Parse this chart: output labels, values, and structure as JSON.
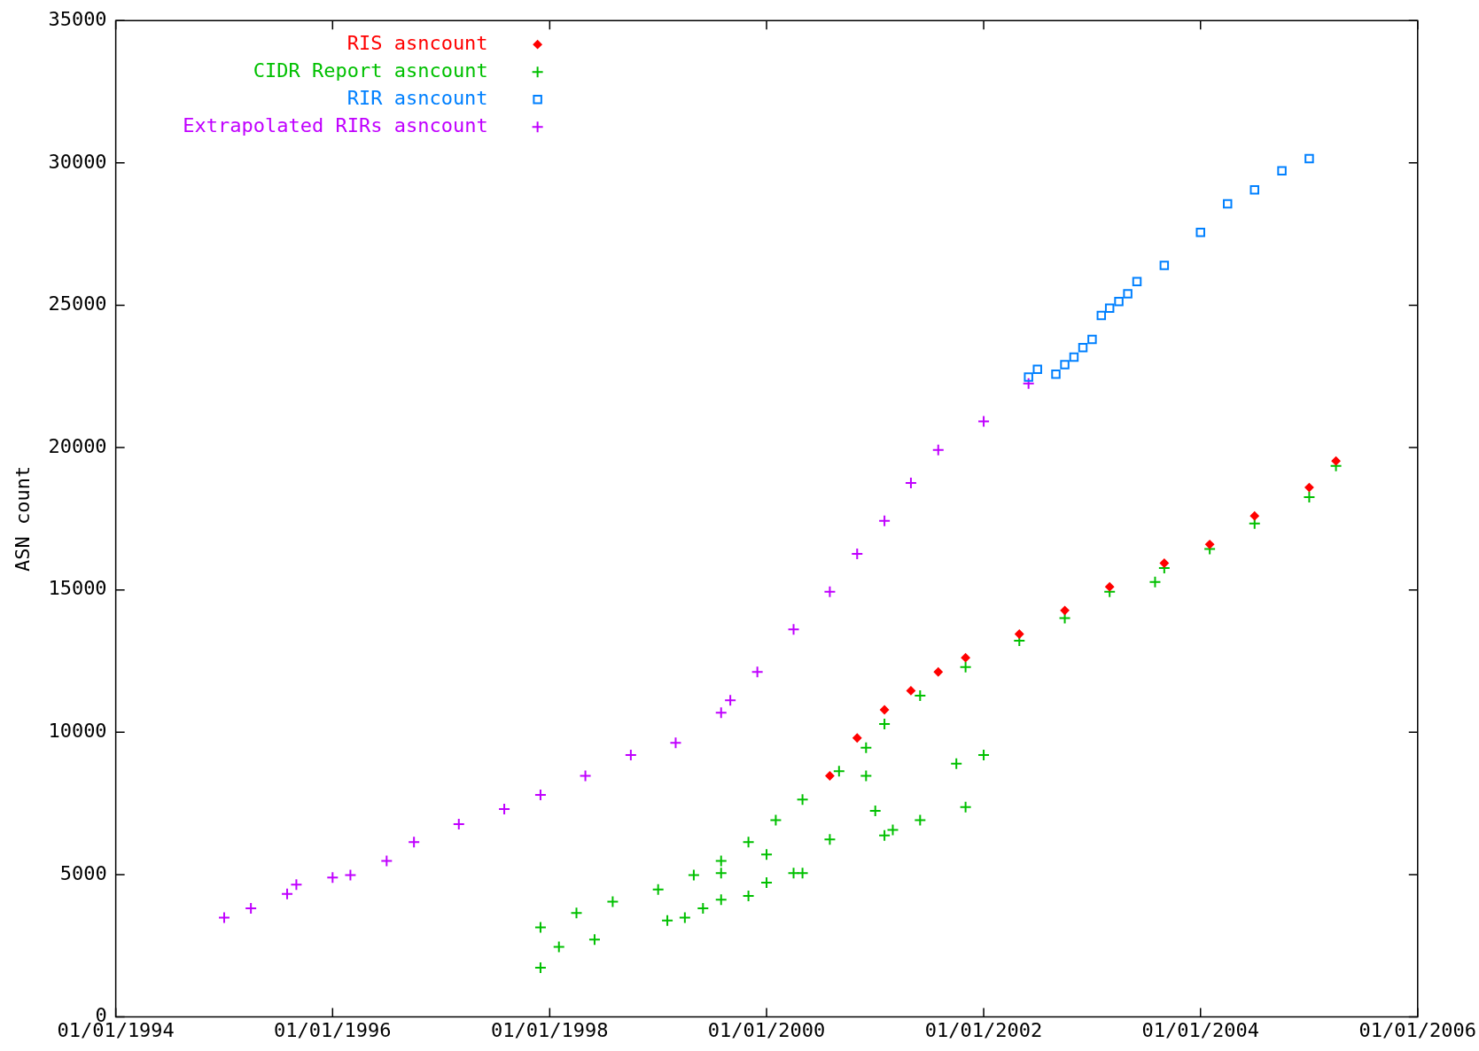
{
  "chart_data": {
    "type": "scatter",
    "ylabel": "ASN count",
    "legend": "top left",
    "xlim": [
      "1994-01-01",
      "2006-01-01"
    ],
    "xticks": [
      {
        "value": "1994-01-01",
        "label": "01/01/1994"
      },
      {
        "value": "1996-01-01",
        "label": "01/01/1996"
      },
      {
        "value": "1998-01-01",
        "label": "01/01/1998"
      },
      {
        "value": "2000-01-01",
        "label": "01/01/2000"
      },
      {
        "value": "2002-01-01",
        "label": "01/01/2002"
      },
      {
        "value": "2004-01-01",
        "label": "01/01/2004"
      },
      {
        "value": "2006-01-01",
        "label": "01/01/2006"
      }
    ],
    "ylim": [
      0,
      35000
    ],
    "yticks": [
      0,
      5000,
      10000,
      15000,
      20000,
      25000,
      30000,
      35000
    ],
    "series": [
      {
        "name": "RIS asncount",
        "color": "#ff0000",
        "marker": "diamond",
        "x": [
          "2000-08",
          "2000-11",
          "2001-02",
          "2001-05",
          "2001-08",
          "2001-11",
          "2002-05",
          "2002-10",
          "2003-03",
          "2003-09",
          "2004-02",
          "2004-07",
          "2005-01",
          "2005-04"
        ],
        "values": [
          8470,
          9800,
          10790,
          11460,
          12120,
          12620,
          13450,
          14280,
          15110,
          15940,
          16600,
          17600,
          18600,
          19530
        ]
      },
      {
        "name": "CIDR Report asncount",
        "color": "#00c000",
        "marker": "cross",
        "x": [
          "1997-12",
          "1998-04",
          "1998-08",
          "1999-01",
          "1999-05",
          "1999-08",
          "1999-11",
          "2000-02",
          "2000-05",
          "2000-09",
          "2000-12",
          "2001-02",
          "2001-06",
          "2001-11",
          "2002-05",
          "2002-10",
          "2003-03",
          "2003-09",
          "2004-02",
          "2004-07",
          "2005-01",
          "2005-04",
          "1997-12",
          "1998-02",
          "1998-06",
          "1999-02",
          "1999-04",
          "1999-06",
          "1999-08",
          "1999-08",
          "1999-11",
          "2000-01",
          "2000-01",
          "2000-04",
          "2000-05",
          "2000-08",
          "2000-12",
          "2001-01",
          "2001-02",
          "2001-03",
          "2001-06",
          "2001-10",
          "2001-11",
          "2002-01",
          "2003-08"
        ],
        "values": [
          3150,
          3650,
          4050,
          4480,
          4980,
          5480,
          6140,
          6910,
          7640,
          8630,
          9460,
          10290,
          11290,
          12290,
          13220,
          14010,
          14940,
          15770,
          16440,
          17330,
          18260,
          19360,
          1730,
          2460,
          2720,
          3390,
          3490,
          3820,
          5050,
          4120,
          4250,
          5710,
          4720,
          5050,
          5050,
          6240,
          8470,
          7240,
          6380,
          6570,
          6910,
          8900,
          7370,
          9200,
          15280
        ]
      },
      {
        "name": "RIR asncount",
        "color": "#0080ff",
        "marker": "square",
        "x": [
          "2002-06",
          "2002-07",
          "2002-09",
          "2002-10",
          "2002-11",
          "2002-12",
          "2003-01",
          "2003-02",
          "2003-03",
          "2003-04",
          "2003-05",
          "2003-06",
          "2003-09",
          "2004-01",
          "2004-04",
          "2004-07",
          "2004-10",
          "2005-01"
        ],
        "values": [
          22480,
          22750,
          22580,
          22910,
          23180,
          23510,
          23800,
          24640,
          24900,
          25130,
          25400,
          25830,
          26400,
          27560,
          28560,
          29050,
          29720,
          30150
        ]
      },
      {
        "name": "Extrapolated RIRs asncount",
        "color": "#c000ff",
        "marker": "cross",
        "x": [
          "1995-01",
          "1995-04",
          "1995-08",
          "1995-09",
          "1996-01",
          "1996-03",
          "1996-07",
          "1996-10",
          "1997-03",
          "1997-08",
          "1997-12",
          "1998-05",
          "1998-10",
          "1999-03",
          "1999-08",
          "1999-09",
          "1999-12",
          "2000-04",
          "2000-08",
          "2000-11",
          "2001-02",
          "2001-05",
          "2001-08",
          "2002-01",
          "2002-06"
        ],
        "values": [
          3490,
          3820,
          4320,
          4650,
          4900,
          4980,
          5480,
          6140,
          6770,
          7300,
          7800,
          8470,
          9200,
          9630,
          10690,
          11120,
          12120,
          13610,
          14940,
          16270,
          17430,
          18760,
          19920,
          20920,
          22250
        ]
      }
    ]
  }
}
